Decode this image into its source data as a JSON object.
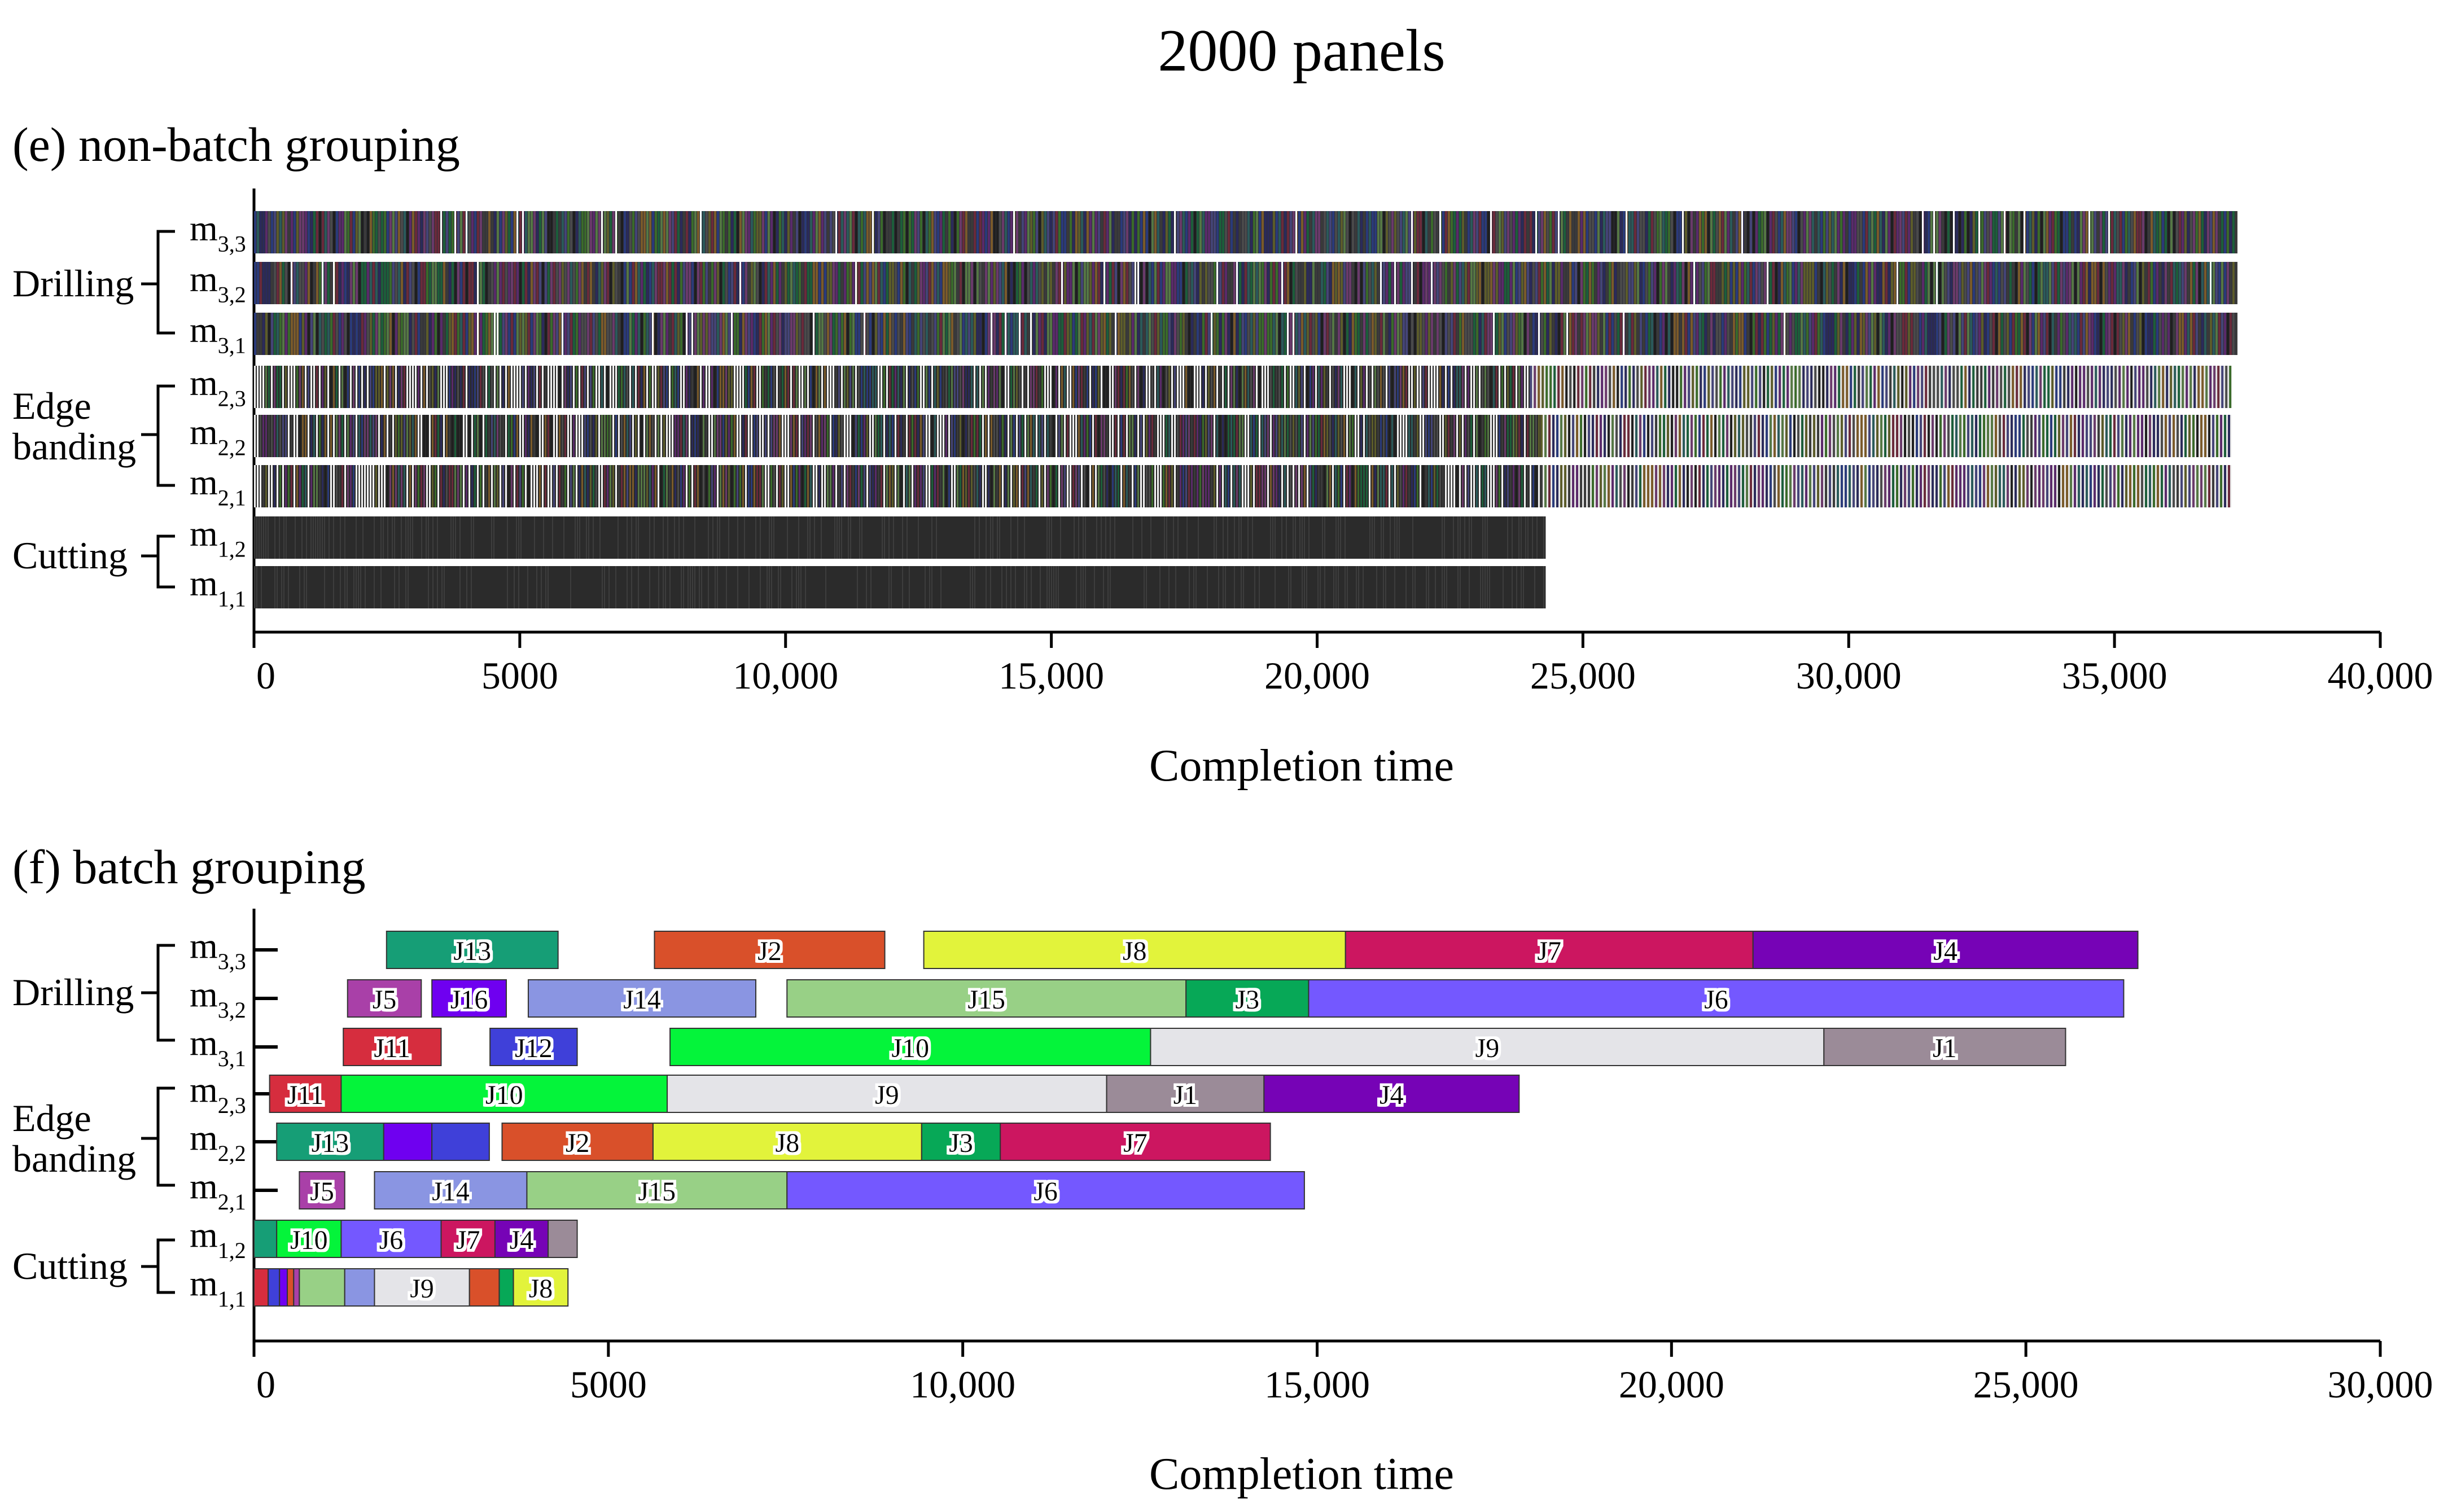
{
  "figure_title": "2000 panels",
  "chart_data": [
    {
      "type": "gantt",
      "panel_label": "(e)  non-batch grouping",
      "xlabel": "Completion time",
      "xlim": [
        0,
        40000
      ],
      "xticks": [
        {
          "v": 0,
          "label": "0"
        },
        {
          "v": 5000,
          "label": "5000"
        },
        {
          "v": 10000,
          "label": "10,000"
        },
        {
          "v": 15000,
          "label": "15,000"
        },
        {
          "v": 20000,
          "label": "20,000"
        },
        {
          "v": 25000,
          "label": "25,000"
        },
        {
          "v": 30000,
          "label": "30,000"
        },
        {
          "v": 35000,
          "label": "35,000"
        },
        {
          "v": 40000,
          "label": "40,000"
        }
      ],
      "groups": [
        {
          "label": [
            "Drilling"
          ],
          "machines": [
            "m3,3",
            "m3,2",
            "m3,1"
          ]
        },
        {
          "label": [
            "Edge",
            "banding"
          ],
          "machines": [
            "m2,3",
            "m2,2",
            "m2,1"
          ]
        },
        {
          "label": [
            "Cutting"
          ],
          "machines": [
            "m1,2",
            "m1,1"
          ]
        }
      ],
      "machine_labels": [
        {
          "id": "m3,3",
          "base": "m",
          "sub": "3,3"
        },
        {
          "id": "m3,2",
          "base": "m",
          "sub": "3,2"
        },
        {
          "id": "m3,1",
          "base": "m",
          "sub": "3,1"
        },
        {
          "id": "m2,3",
          "base": "m",
          "sub": "2,3"
        },
        {
          "id": "m2,2",
          "base": "m",
          "sub": "2,2"
        },
        {
          "id": "m2,1",
          "base": "m",
          "sub": "2,1"
        },
        {
          "id": "m1,2",
          "base": "m",
          "sub": "1,2"
        },
        {
          "id": "m1,1",
          "base": "m",
          "sub": "1,1"
        }
      ],
      "rows": [
        {
          "machine": "m3,3",
          "start": 0,
          "end": 37300,
          "style": "multicolor-dense"
        },
        {
          "machine": "m3,2",
          "start": 0,
          "end": 37300,
          "style": "multicolor-dense"
        },
        {
          "machine": "m3,1",
          "start": 0,
          "end": 37300,
          "style": "multicolor-dense"
        },
        {
          "machine": "m2,3",
          "start": 0,
          "end": 37200,
          "dense_until": 24000,
          "style": "multicolor-striped"
        },
        {
          "machine": "m2,2",
          "start": 0,
          "end": 37200,
          "dense_until": 24200,
          "style": "multicolor-striped"
        },
        {
          "machine": "m2,1",
          "start": 0,
          "end": 37200,
          "dense_until": 24200,
          "style": "multicolor-striped"
        },
        {
          "machine": "m1,2",
          "start": 0,
          "end": 24300,
          "style": "dark"
        },
        {
          "machine": "m1,1",
          "start": 0,
          "end": 24300,
          "style": "dark"
        }
      ]
    },
    {
      "type": "gantt",
      "panel_label": "(f)  batch grouping",
      "xlabel": "Completion time",
      "xlim": [
        0,
        30000
      ],
      "xticks": [
        {
          "v": 0,
          "label": "0"
        },
        {
          "v": 5000,
          "label": "5000"
        },
        {
          "v": 10000,
          "label": "10,000"
        },
        {
          "v": 15000,
          "label": "15,000"
        },
        {
          "v": 20000,
          "label": "20,000"
        },
        {
          "v": 25000,
          "label": "25,000"
        },
        {
          "v": 30000,
          "label": "30,000"
        }
      ],
      "groups": [
        {
          "label": [
            "Drilling"
          ],
          "machines": [
            "m3,3",
            "m3,2",
            "m3,1"
          ]
        },
        {
          "label": [
            "Edge",
            "banding"
          ],
          "machines": [
            "m2,3",
            "m2,2",
            "m2,1"
          ]
        },
        {
          "label": [
            "Cutting"
          ],
          "machines": [
            "m1,2",
            "m1,1"
          ]
        }
      ],
      "machine_labels": [
        {
          "id": "m3,3",
          "base": "m",
          "sub": "3,3"
        },
        {
          "id": "m3,2",
          "base": "m",
          "sub": "3,2"
        },
        {
          "id": "m3,1",
          "base": "m",
          "sub": "3,1"
        },
        {
          "id": "m2,3",
          "base": "m",
          "sub": "2,3"
        },
        {
          "id": "m2,2",
          "base": "m",
          "sub": "2,2"
        },
        {
          "id": "m2,1",
          "base": "m",
          "sub": "2,1"
        },
        {
          "id": "m1,2",
          "base": "m",
          "sub": "1,2"
        },
        {
          "id": "m1,1",
          "base": "m",
          "sub": "1,1"
        }
      ],
      "bars": [
        {
          "machine": "m3,3",
          "job": "J13",
          "start": 1870,
          "end": 4290,
          "color": "#169e76"
        },
        {
          "machine": "m3,3",
          "job": "J2",
          "start": 5650,
          "end": 8900,
          "color": "#d9502a"
        },
        {
          "machine": "m3,3",
          "job": "J8",
          "start": 9450,
          "end": 15400,
          "color": "#e2f33b"
        },
        {
          "machine": "m3,3",
          "job": "J7",
          "start": 15400,
          "end": 21150,
          "color": "#cc1660"
        },
        {
          "machine": "m3,3",
          "job": "J4",
          "start": 21150,
          "end": 26580,
          "color": "#7603b6"
        },
        {
          "machine": "m3,2",
          "job": "J5",
          "start": 1320,
          "end": 2360,
          "color": "#a940a8"
        },
        {
          "machine": "m3,2",
          "job": "J16",
          "start": 2510,
          "end": 3560,
          "color": "#6f00f0"
        },
        {
          "machine": "m3,2",
          "job": "J14",
          "start": 3870,
          "end": 7080,
          "color": "#8a95e2"
        },
        {
          "machine": "m3,2",
          "job": "J15",
          "start": 7520,
          "end": 13150,
          "color": "#98d086"
        },
        {
          "machine": "m3,2",
          "job": "J3",
          "start": 13150,
          "end": 14880,
          "color": "#07a857"
        },
        {
          "machine": "m3,2",
          "job": "J6",
          "start": 14880,
          "end": 26380,
          "color": "#7458ff"
        },
        {
          "machine": "m3,1",
          "job": "J11",
          "start": 1260,
          "end": 2640,
          "color": "#d62d3e"
        },
        {
          "machine": "m3,1",
          "job": "J12",
          "start": 3330,
          "end": 4560,
          "color": "#3f40d9"
        },
        {
          "machine": "m3,1",
          "job": "J10",
          "start": 5870,
          "end": 12650,
          "color": "#04f43a"
        },
        {
          "machine": "m3,1",
          "job": "J9",
          "start": 12650,
          "end": 22150,
          "color": "#e4e4e8"
        },
        {
          "machine": "m3,1",
          "job": "J1",
          "start": 22150,
          "end": 25560,
          "color": "#9b8b98"
        },
        {
          "machine": "m2,3",
          "job": "J11",
          "start": 220,
          "end": 1230,
          "color": "#d62d3e"
        },
        {
          "machine": "m2,3",
          "job": "J10",
          "start": 1230,
          "end": 5830,
          "color": "#04f43a"
        },
        {
          "machine": "m2,3",
          "job": "J9",
          "start": 5830,
          "end": 12030,
          "color": "#e4e4e8"
        },
        {
          "machine": "m2,3",
          "job": "J1",
          "start": 12030,
          "end": 14250,
          "color": "#9b8b98"
        },
        {
          "machine": "m2,3",
          "job": "J4",
          "start": 14250,
          "end": 17850,
          "color": "#7603b6"
        },
        {
          "machine": "m2,2",
          "job": "J13",
          "start": 320,
          "end": 1830,
          "color": "#169e76"
        },
        {
          "machine": "m2,2",
          "job": "",
          "start": 1830,
          "end": 2510,
          "color": "#6f00f0"
        },
        {
          "machine": "m2,2",
          "job": "",
          "start": 2510,
          "end": 3320,
          "color": "#3f40d9"
        },
        {
          "machine": "m2,2",
          "job": "J2",
          "start": 3500,
          "end": 5630,
          "color": "#d9502a"
        },
        {
          "machine": "m2,2",
          "job": "J8",
          "start": 5630,
          "end": 9420,
          "color": "#e2f33b"
        },
        {
          "machine": "m2,2",
          "job": "J3",
          "start": 9420,
          "end": 10530,
          "color": "#07a857"
        },
        {
          "machine": "m2,2",
          "job": "J7",
          "start": 10530,
          "end": 14340,
          "color": "#cc1660"
        },
        {
          "machine": "m2,1",
          "job": "J5",
          "start": 640,
          "end": 1280,
          "color": "#a940a8"
        },
        {
          "machine": "m2,1",
          "job": "J14",
          "start": 1700,
          "end": 3850,
          "color": "#8a95e2"
        },
        {
          "machine": "m2,1",
          "job": "J15",
          "start": 3850,
          "end": 7520,
          "color": "#98d086"
        },
        {
          "machine": "m2,1",
          "job": "J6",
          "start": 7520,
          "end": 14820,
          "color": "#7458ff"
        },
        {
          "machine": "m1,2",
          "job": "",
          "start": 0,
          "end": 320,
          "color": "#169e76"
        },
        {
          "machine": "m1,2",
          "job": "J10",
          "start": 320,
          "end": 1230,
          "color": "#04f43a"
        },
        {
          "machine": "m1,2",
          "job": "J6",
          "start": 1230,
          "end": 2640,
          "color": "#7458ff"
        },
        {
          "machine": "m1,2",
          "job": "J7",
          "start": 2640,
          "end": 3400,
          "color": "#cc1660"
        },
        {
          "machine": "m1,2",
          "job": "J4",
          "start": 3400,
          "end": 4150,
          "color": "#7603b6"
        },
        {
          "machine": "m1,2",
          "job": "",
          "start": 4150,
          "end": 4560,
          "color": "#9b8b98"
        },
        {
          "machine": "m1,1",
          "job": "",
          "start": 0,
          "end": 200,
          "color": "#d62d3e"
        },
        {
          "machine": "m1,1",
          "job": "",
          "start": 200,
          "end": 360,
          "color": "#3f40d9"
        },
        {
          "machine": "m1,1",
          "job": "",
          "start": 360,
          "end": 470,
          "color": "#6f00f0"
        },
        {
          "machine": "m1,1",
          "job": "",
          "start": 470,
          "end": 560,
          "color": "#d9502a"
        },
        {
          "machine": "m1,1",
          "job": "",
          "start": 560,
          "end": 640,
          "color": "#a940a8"
        },
        {
          "machine": "m1,1",
          "job": "",
          "start": 640,
          "end": 1280,
          "color": "#98d086"
        },
        {
          "machine": "m1,1",
          "job": "",
          "start": 1280,
          "end": 1700,
          "color": "#8a95e2"
        },
        {
          "machine": "m1,1",
          "job": "J9",
          "start": 1700,
          "end": 3040,
          "color": "#e4e4e8"
        },
        {
          "machine": "m1,1",
          "job": "",
          "start": 3040,
          "end": 3460,
          "color": "#d9502a"
        },
        {
          "machine": "m1,1",
          "job": "",
          "start": 3460,
          "end": 3660,
          "color": "#07a857"
        },
        {
          "machine": "m1,1",
          "job": "J8",
          "start": 3660,
          "end": 4430,
          "color": "#e2f33b"
        }
      ]
    }
  ]
}
